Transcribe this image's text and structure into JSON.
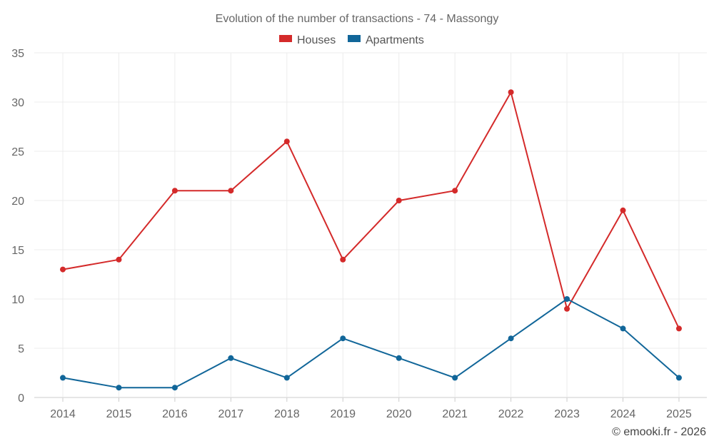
{
  "chart_data": {
    "type": "line",
    "title": "Evolution of the number of transactions - 74 - Massongy",
    "categories": [
      "2014",
      "2015",
      "2016",
      "2017",
      "2018",
      "2019",
      "2020",
      "2021",
      "2022",
      "2023",
      "2024",
      "2025"
    ],
    "ylim": [
      0,
      35
    ],
    "yticks": [
      0,
      5,
      10,
      15,
      20,
      25,
      30,
      35
    ],
    "ytick_labels": [
      "0",
      "5",
      "10",
      "15",
      "20",
      "25",
      "30",
      "35"
    ],
    "grid": true,
    "legend_position": "top-center",
    "series": [
      {
        "name": "Houses",
        "color": "#d42a2a",
        "values": [
          13,
          14,
          21,
          21,
          26,
          14,
          20,
          21,
          31,
          9,
          19,
          7
        ]
      },
      {
        "name": "Apartments",
        "color": "#116699",
        "values": [
          2,
          1,
          1,
          4,
          2,
          6,
          4,
          2,
          6,
          10,
          7,
          2
        ]
      }
    ]
  },
  "credit": "© emooki.fr - 2026"
}
